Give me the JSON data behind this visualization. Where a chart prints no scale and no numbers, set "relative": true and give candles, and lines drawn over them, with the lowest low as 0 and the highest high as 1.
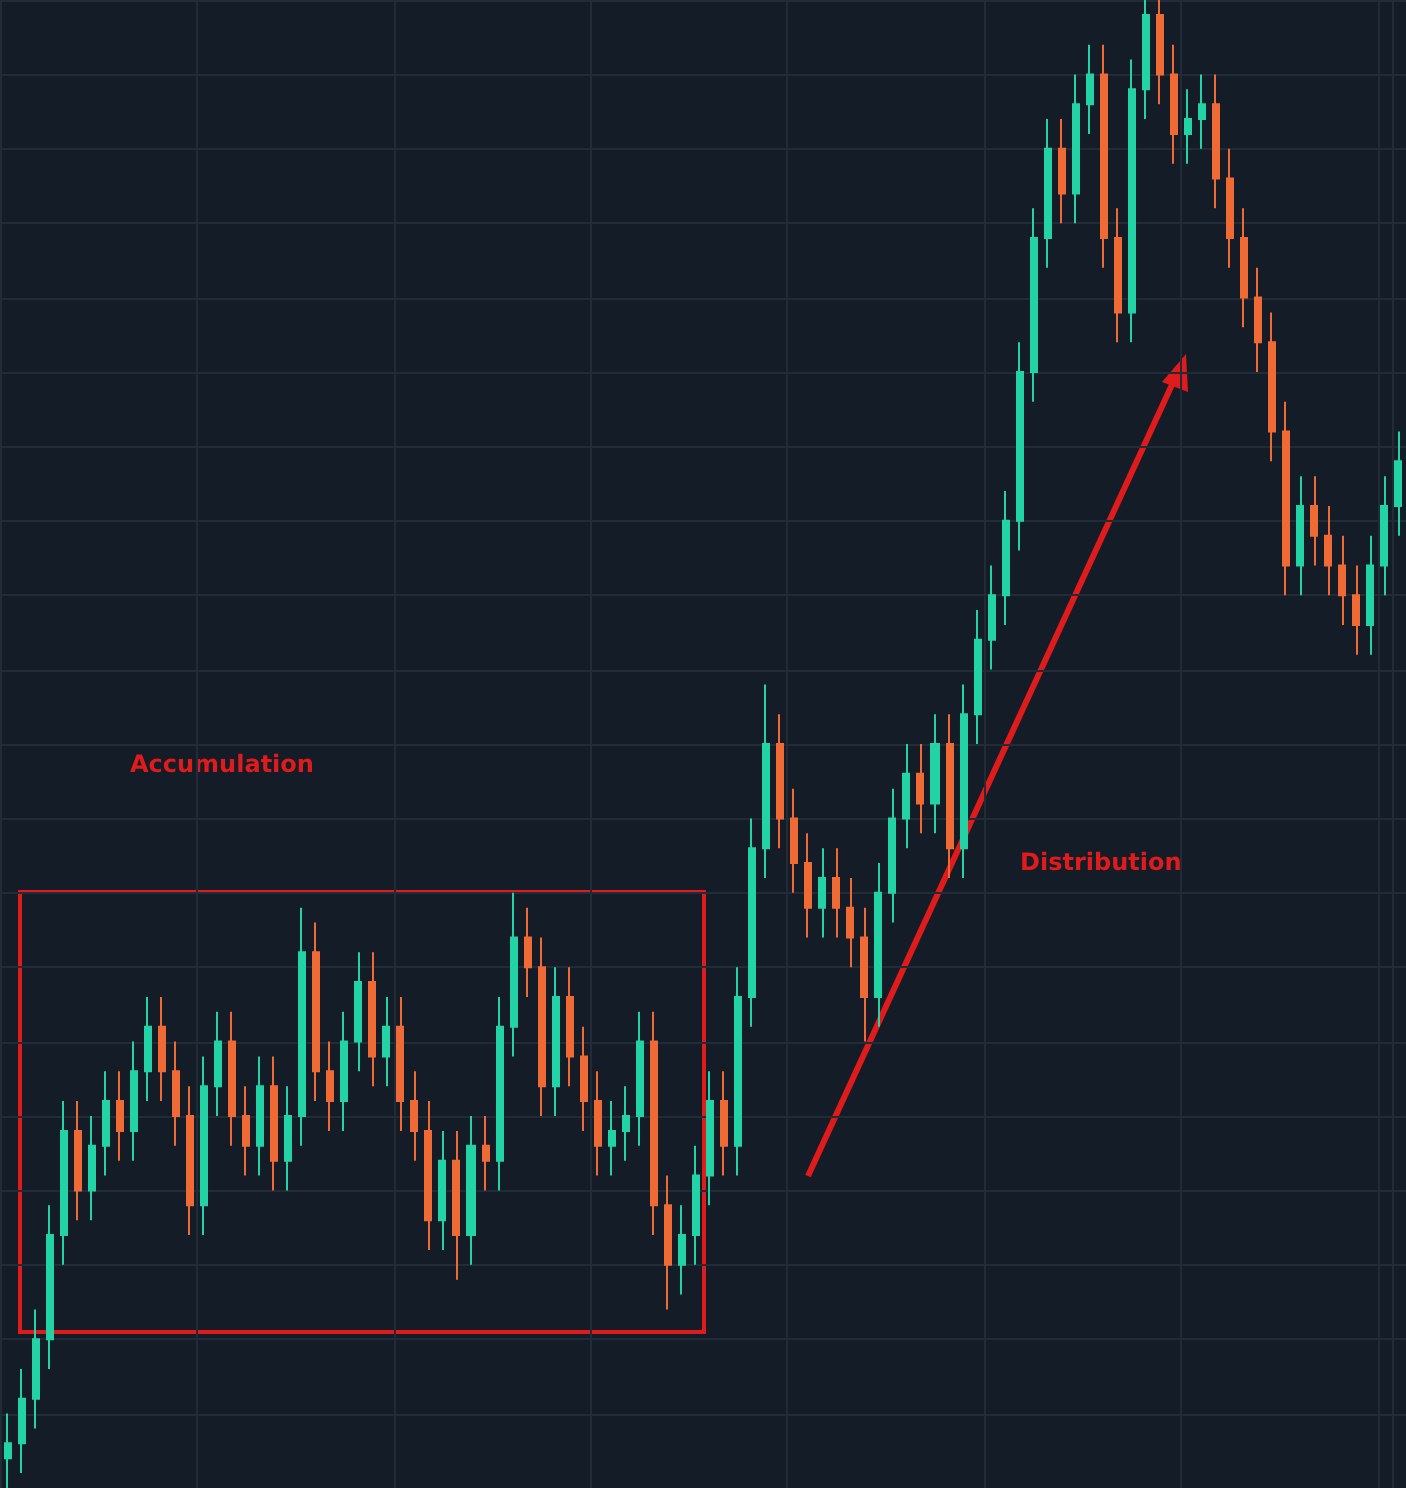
{
  "chart_data": {
    "type": "candlestick",
    "relative": true,
    "grid": true,
    "annotations": [
      "Accumulation",
      "Distribution"
    ],
    "categories": [
      null,
      null,
      null,
      null,
      null,
      null,
      null,
      null,
      null,
      null,
      null,
      null,
      null,
      null,
      null,
      null,
      null,
      null,
      null,
      null,
      null,
      null,
      null,
      null,
      null,
      null,
      null,
      null,
      null,
      null,
      null,
      null,
      null,
      null,
      null,
      null,
      null,
      null,
      null,
      null,
      null,
      null,
      null,
      null,
      null,
      null,
      null,
      null,
      null,
      null,
      null,
      null,
      null,
      null,
      null,
      null,
      null,
      null,
      null,
      null,
      null,
      null,
      null,
      null,
      null,
      null,
      null,
      null,
      null,
      null,
      null,
      null,
      null,
      null,
      null,
      null,
      null,
      null,
      null,
      null,
      null,
      null,
      null,
      null,
      null,
      null,
      null,
      null,
      null,
      null,
      null,
      null,
      null,
      null,
      null,
      null,
      null,
      null,
      null,
      null
    ],
    "ohlc": [
      [
        0.02,
        0.05,
        0.0,
        0.03
      ],
      [
        0.03,
        0.08,
        0.01,
        0.06
      ],
      [
        0.06,
        0.12,
        0.04,
        0.1
      ],
      [
        0.1,
        0.19,
        0.08,
        0.17
      ],
      [
        0.17,
        0.26,
        0.15,
        0.24
      ],
      [
        0.24,
        0.26,
        0.18,
        0.2
      ],
      [
        0.2,
        0.25,
        0.18,
        0.23
      ],
      [
        0.23,
        0.28,
        0.21,
        0.26
      ],
      [
        0.26,
        0.28,
        0.22,
        0.24
      ],
      [
        0.24,
        0.3,
        0.22,
        0.28
      ],
      [
        0.28,
        0.33,
        0.26,
        0.31
      ],
      [
        0.31,
        0.33,
        0.26,
        0.28
      ],
      [
        0.28,
        0.3,
        0.23,
        0.25
      ],
      [
        0.25,
        0.27,
        0.17,
        0.19
      ],
      [
        0.19,
        0.29,
        0.17,
        0.27
      ],
      [
        0.27,
        0.32,
        0.25,
        0.3
      ],
      [
        0.3,
        0.32,
        0.23,
        0.25
      ],
      [
        0.25,
        0.27,
        0.21,
        0.23
      ],
      [
        0.23,
        0.29,
        0.21,
        0.27
      ],
      [
        0.27,
        0.29,
        0.2,
        0.22
      ],
      [
        0.22,
        0.27,
        0.2,
        0.25
      ],
      [
        0.25,
        0.39,
        0.23,
        0.36
      ],
      [
        0.36,
        0.38,
        0.26,
        0.28
      ],
      [
        0.28,
        0.3,
        0.24,
        0.26
      ],
      [
        0.26,
        0.32,
        0.24,
        0.3
      ],
      [
        0.3,
        0.36,
        0.28,
        0.34
      ],
      [
        0.34,
        0.36,
        0.27,
        0.29
      ],
      [
        0.29,
        0.33,
        0.27,
        0.31
      ],
      [
        0.31,
        0.33,
        0.24,
        0.26
      ],
      [
        0.26,
        0.28,
        0.22,
        0.24
      ],
      [
        0.24,
        0.26,
        0.16,
        0.18
      ],
      [
        0.18,
        0.24,
        0.16,
        0.22
      ],
      [
        0.22,
        0.24,
        0.14,
        0.17
      ],
      [
        0.17,
        0.25,
        0.15,
        0.23
      ],
      [
        0.23,
        0.25,
        0.2,
        0.22
      ],
      [
        0.22,
        0.33,
        0.2,
        0.31
      ],
      [
        0.31,
        0.4,
        0.29,
        0.37
      ],
      [
        0.37,
        0.39,
        0.33,
        0.35
      ],
      [
        0.35,
        0.37,
        0.25,
        0.27
      ],
      [
        0.27,
        0.35,
        0.25,
        0.33
      ],
      [
        0.33,
        0.35,
        0.27,
        0.29
      ],
      [
        0.29,
        0.31,
        0.24,
        0.26
      ],
      [
        0.26,
        0.28,
        0.21,
        0.23
      ],
      [
        0.23,
        0.26,
        0.21,
        0.24
      ],
      [
        0.24,
        0.27,
        0.22,
        0.25
      ],
      [
        0.25,
        0.32,
        0.23,
        0.3
      ],
      [
        0.3,
        0.32,
        0.17,
        0.19
      ],
      [
        0.19,
        0.21,
        0.12,
        0.15
      ],
      [
        0.15,
        0.19,
        0.13,
        0.17
      ],
      [
        0.17,
        0.23,
        0.15,
        0.21
      ],
      [
        0.21,
        0.28,
        0.19,
        0.26
      ],
      [
        0.26,
        0.28,
        0.21,
        0.23
      ],
      [
        0.23,
        0.35,
        0.21,
        0.33
      ],
      [
        0.33,
        0.45,
        0.31,
        0.43
      ],
      [
        0.43,
        0.54,
        0.41,
        0.5
      ],
      [
        0.5,
        0.52,
        0.43,
        0.45
      ],
      [
        0.45,
        0.47,
        0.4,
        0.42
      ],
      [
        0.42,
        0.44,
        0.37,
        0.39
      ],
      [
        0.39,
        0.43,
        0.37,
        0.41
      ],
      [
        0.41,
        0.43,
        0.37,
        0.39
      ],
      [
        0.39,
        0.41,
        0.35,
        0.37
      ],
      [
        0.37,
        0.39,
        0.3,
        0.33
      ],
      [
        0.33,
        0.42,
        0.31,
        0.4
      ],
      [
        0.4,
        0.47,
        0.38,
        0.45
      ],
      [
        0.45,
        0.5,
        0.43,
        0.48
      ],
      [
        0.48,
        0.5,
        0.44,
        0.46
      ],
      [
        0.46,
        0.52,
        0.44,
        0.5
      ],
      [
        0.5,
        0.52,
        0.41,
        0.43
      ],
      [
        0.43,
        0.54,
        0.41,
        0.52
      ],
      [
        0.52,
        0.59,
        0.5,
        0.57
      ],
      [
        0.57,
        0.62,
        0.55,
        0.6
      ],
      [
        0.6,
        0.67,
        0.58,
        0.65
      ],
      [
        0.65,
        0.77,
        0.63,
        0.75
      ],
      [
        0.75,
        0.86,
        0.73,
        0.84
      ],
      [
        0.84,
        0.92,
        0.82,
        0.9
      ],
      [
        0.9,
        0.92,
        0.85,
        0.87
      ],
      [
        0.87,
        0.95,
        0.85,
        0.93
      ],
      [
        0.93,
        0.97,
        0.91,
        0.95
      ],
      [
        0.95,
        0.97,
        0.82,
        0.84
      ],
      [
        0.84,
        0.86,
        0.77,
        0.79
      ],
      [
        0.79,
        0.96,
        0.77,
        0.94
      ],
      [
        0.94,
        1.0,
        0.92,
        0.99
      ],
      [
        0.99,
        1.0,
        0.93,
        0.95
      ],
      [
        0.95,
        0.97,
        0.89,
        0.91
      ],
      [
        0.91,
        0.94,
        0.89,
        0.92
      ],
      [
        0.92,
        0.95,
        0.9,
        0.93
      ],
      [
        0.93,
        0.95,
        0.86,
        0.88
      ],
      [
        0.88,
        0.9,
        0.82,
        0.84
      ],
      [
        0.84,
        0.86,
        0.78,
        0.8
      ],
      [
        0.8,
        0.82,
        0.75,
        0.77
      ],
      [
        0.77,
        0.79,
        0.69,
        0.71
      ],
      [
        0.71,
        0.73,
        0.6,
        0.62
      ],
      [
        0.62,
        0.68,
        0.6,
        0.66
      ],
      [
        0.66,
        0.68,
        0.62,
        0.64
      ],
      [
        0.64,
        0.66,
        0.6,
        0.62
      ],
      [
        0.62,
        0.64,
        0.58,
        0.6
      ],
      [
        0.6,
        0.62,
        0.56,
        0.58
      ],
      [
        0.58,
        0.64,
        0.56,
        0.62
      ],
      [
        0.62,
        0.68,
        0.6,
        0.66
      ],
      [
        0.66,
        0.71,
        0.64,
        0.69
      ]
    ]
  }
}
